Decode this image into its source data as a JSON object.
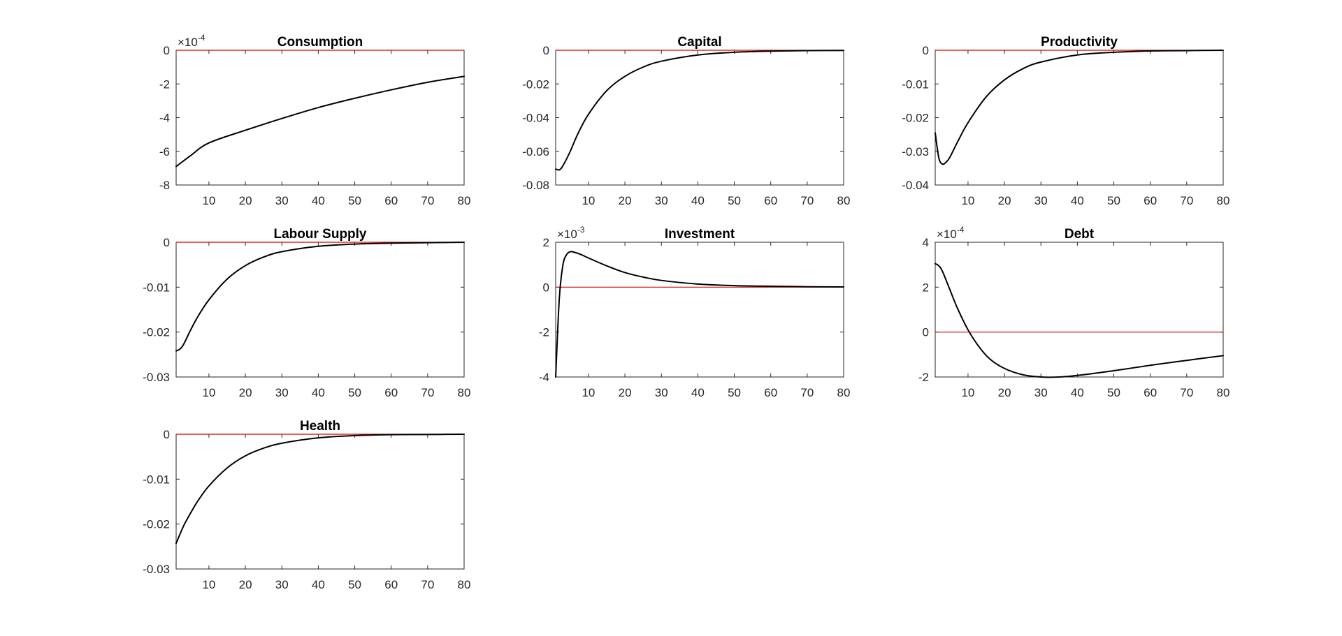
{
  "chart_data": [
    {
      "type": "line",
      "title": "Consumption",
      "xlabel": "",
      "ylabel": "",
      "xlim": [
        1,
        80
      ],
      "ylim": [
        -8,
        0
      ],
      "xticks": [
        "10",
        "20",
        "30",
        "40",
        "50",
        "60",
        "70",
        "80"
      ],
      "yticks": [
        "-8",
        "-6",
        "-4",
        "-2",
        "0"
      ],
      "yexponent": "-4",
      "grid": false,
      "series": [
        {
          "color": "#000000",
          "x": [
            1,
            5,
            10,
            20,
            30,
            40,
            50,
            60,
            70,
            80
          ],
          "y": [
            -6.9,
            -6.25,
            -5.5,
            -4.75,
            -4.05,
            -3.4,
            -2.85,
            -2.35,
            -1.9,
            -1.55
          ]
        },
        {
          "color": "#d40000",
          "x": [
            1,
            80
          ],
          "y": [
            0,
            0
          ]
        }
      ]
    },
    {
      "type": "line",
      "title": "Capital",
      "xlabel": "",
      "ylabel": "",
      "xlim": [
        1,
        80
      ],
      "ylim": [
        -0.08,
        0
      ],
      "xticks": [
        "10",
        "20",
        "30",
        "40",
        "50",
        "60",
        "70",
        "80"
      ],
      "yticks": [
        "-0.08",
        "-0.06",
        "-0.04",
        "-0.02",
        "0"
      ],
      "grid": false,
      "series": [
        {
          "color": "#000000",
          "x": [
            1,
            2,
            3,
            5,
            7,
            10,
            15,
            20,
            25,
            30,
            40,
            50,
            60,
            70,
            80
          ],
          "y": [
            -0.0705,
            -0.071,
            -0.0685,
            -0.06,
            -0.05,
            -0.038,
            -0.024,
            -0.0155,
            -0.01,
            -0.0065,
            -0.0028,
            -0.0012,
            -0.0005,
            -0.0002,
            -0.0001
          ]
        },
        {
          "color": "#d40000",
          "x": [
            1,
            80
          ],
          "y": [
            0,
            0
          ]
        }
      ]
    },
    {
      "type": "line",
      "title": "Productivity",
      "xlabel": "",
      "ylabel": "",
      "xlim": [
        1,
        80
      ],
      "ylim": [
        -0.04,
        0
      ],
      "xticks": [
        "10",
        "20",
        "30",
        "40",
        "50",
        "60",
        "70",
        "80"
      ],
      "yticks": [
        "-0.04",
        "-0.03",
        "-0.02",
        "-0.01",
        "0"
      ],
      "grid": false,
      "series": [
        {
          "color": "#000000",
          "x": [
            1,
            2,
            3,
            4,
            5,
            7,
            10,
            15,
            20,
            25,
            30,
            40,
            50,
            60,
            70,
            80
          ],
          "y": [
            -0.0245,
            -0.032,
            -0.0338,
            -0.0332,
            -0.0318,
            -0.0275,
            -0.0215,
            -0.0138,
            -0.0088,
            -0.0055,
            -0.0035,
            -0.0014,
            -0.0006,
            -0.0002,
            -0.0001,
            0
          ]
        },
        {
          "color": "#d40000",
          "x": [
            1,
            80
          ],
          "y": [
            0,
            0
          ]
        }
      ]
    },
    {
      "type": "line",
      "title": "Labour Supply",
      "xlabel": "",
      "ylabel": "",
      "xlim": [
        1,
        80
      ],
      "ylim": [
        -0.03,
        0
      ],
      "xticks": [
        "10",
        "20",
        "30",
        "40",
        "50",
        "60",
        "70",
        "80"
      ],
      "yticks": [
        "-0.03",
        "-0.02",
        "-0.01",
        "0"
      ],
      "grid": false,
      "series": [
        {
          "color": "#000000",
          "x": [
            1,
            2,
            3,
            5,
            7,
            10,
            15,
            20,
            25,
            30,
            40,
            50,
            60,
            70,
            80
          ],
          "y": [
            -0.0242,
            -0.0238,
            -0.0228,
            -0.0195,
            -0.0165,
            -0.0128,
            -0.0082,
            -0.0052,
            -0.0033,
            -0.0021,
            -0.0009,
            -0.0004,
            -0.0002,
            -0.0001,
            0
          ]
        },
        {
          "color": "#d40000",
          "x": [
            1,
            80
          ],
          "y": [
            0,
            0
          ]
        }
      ]
    },
    {
      "type": "line",
      "title": "Investment",
      "xlabel": "",
      "ylabel": "",
      "xlim": [
        1,
        80
      ],
      "ylim": [
        -4,
        2
      ],
      "xticks": [
        "10",
        "20",
        "30",
        "40",
        "50",
        "60",
        "70",
        "80"
      ],
      "yticks": [
        "-4",
        "-2",
        "0",
        "2"
      ],
      "yexponent": "-3",
      "grid": false,
      "series": [
        {
          "color": "#000000",
          "x": [
            1,
            2,
            3,
            4,
            5,
            6,
            8,
            10,
            15,
            20,
            25,
            30,
            40,
            50,
            60,
            70,
            80
          ],
          "y": [
            -4.0,
            -0.5,
            1.0,
            1.45,
            1.58,
            1.56,
            1.45,
            1.3,
            0.95,
            0.65,
            0.45,
            0.3,
            0.14,
            0.07,
            0.04,
            0.02,
            0.01
          ]
        },
        {
          "color": "#d40000",
          "x": [
            1,
            80
          ],
          "y": [
            0,
            0
          ]
        }
      ]
    },
    {
      "type": "line",
      "title": "Debt",
      "xlabel": "",
      "ylabel": "",
      "xlim": [
        1,
        80
      ],
      "ylim": [
        -2,
        4
      ],
      "xticks": [
        "10",
        "20",
        "30",
        "40",
        "50",
        "60",
        "70",
        "80"
      ],
      "yticks": [
        "-2",
        "0",
        "2",
        "4"
      ],
      "yexponent": "-4",
      "grid": false,
      "series": [
        {
          "color": "#000000",
          "x": [
            1,
            2,
            3,
            5,
            7,
            10,
            13,
            16,
            20,
            25,
            30,
            35,
            40,
            50,
            60,
            70,
            80
          ],
          "y": [
            3.05,
            2.95,
            2.7,
            1.9,
            1.1,
            0.1,
            -0.65,
            -1.2,
            -1.62,
            -1.9,
            -2.0,
            -2.0,
            -1.93,
            -1.72,
            -1.48,
            -1.26,
            -1.05
          ]
        },
        {
          "color": "#d40000",
          "x": [
            1,
            80
          ],
          "y": [
            0,
            0
          ]
        }
      ]
    },
    {
      "type": "line",
      "title": "Health",
      "xlabel": "",
      "ylabel": "",
      "xlim": [
        1,
        80
      ],
      "ylim": [
        -0.03,
        0
      ],
      "xticks": [
        "10",
        "20",
        "30",
        "40",
        "50",
        "60",
        "70",
        "80"
      ],
      "yticks": [
        "-0.03",
        "-0.02",
        "-0.01",
        "0"
      ],
      "grid": false,
      "series": [
        {
          "color": "#000000",
          "x": [
            1,
            3,
            5,
            7,
            10,
            15,
            20,
            25,
            30,
            40,
            50,
            60,
            70,
            80
          ],
          "y": [
            -0.0243,
            -0.0205,
            -0.0175,
            -0.0148,
            -0.0115,
            -0.0075,
            -0.0048,
            -0.0031,
            -0.002,
            -0.0008,
            -0.0003,
            -0.0001,
            -5e-05,
            0
          ]
        },
        {
          "color": "#d40000",
          "x": [
            1,
            80
          ],
          "y": [
            0,
            0
          ]
        }
      ]
    }
  ]
}
